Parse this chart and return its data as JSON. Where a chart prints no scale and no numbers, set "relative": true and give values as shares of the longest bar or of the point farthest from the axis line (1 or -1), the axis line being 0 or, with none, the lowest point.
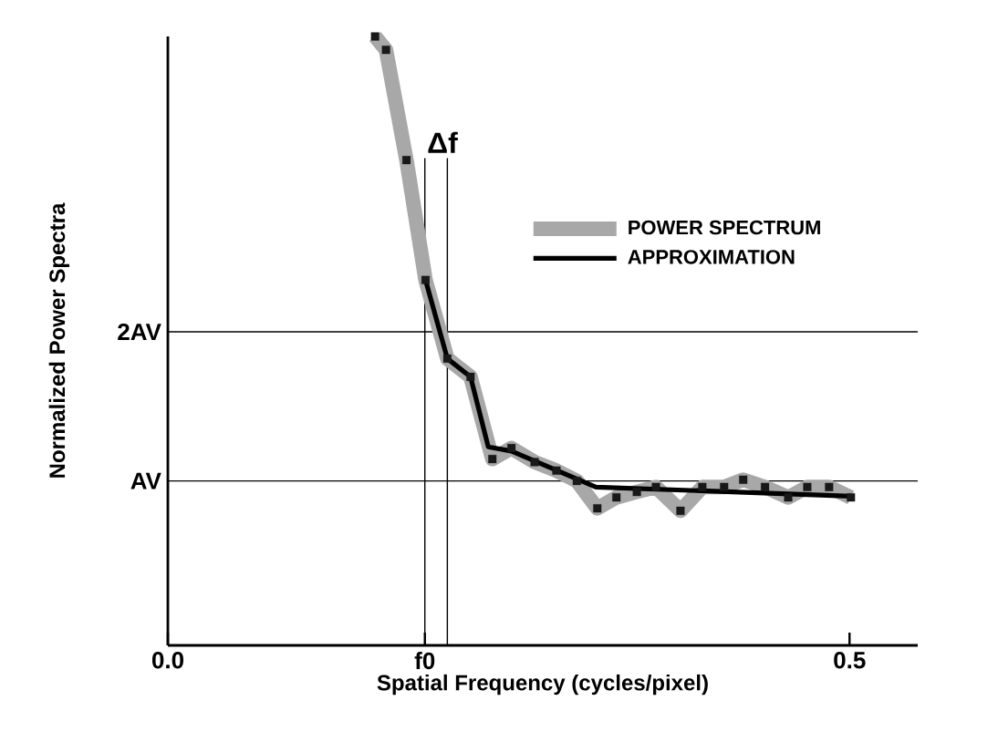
{
  "chart_data": {
    "type": "line",
    "xlabel": "Spatial Frequency (cycles/pixel)",
    "ylabel": "Normalized Power Spectra",
    "relative": true,
    "xlim": [
      0,
      0.55
    ],
    "xticks": [
      {
        "value": 0,
        "label": "0.0"
      },
      {
        "value": 0.1885,
        "label": "f0"
      },
      {
        "value": 0.5,
        "label": "0.5"
      }
    ],
    "series": [
      {
        "name": "POWER SPECTRUM",
        "color": "#a8a8a8",
        "marker": "square",
        "x": [
          0.152,
          0.16,
          0.175,
          0.189,
          0.205,
          0.222,
          0.238,
          0.252,
          0.269,
          0.285,
          0.3,
          0.315,
          0.329,
          0.344,
          0.358,
          0.376,
          0.392,
          0.408,
          0.422,
          0.438,
          0.455,
          0.469,
          0.485,
          0.501
        ],
        "values": [
          1.0,
          0.978,
          0.797,
          0.6,
          0.471,
          0.441,
          0.306,
          0.324,
          0.301,
          0.287,
          0.27,
          0.225,
          0.243,
          0.252,
          0.26,
          0.221,
          0.26,
          0.26,
          0.272,
          0.26,
          0.243,
          0.26,
          0.26,
          0.243
        ]
      },
      {
        "name": "APPROXIMATION",
        "color": "#000000",
        "marker": "none",
        "x": [
          0.189,
          0.205,
          0.222,
          0.235,
          0.252,
          0.314,
          0.501
        ],
        "values": [
          0.6,
          0.471,
          0.441,
          0.326,
          0.319,
          0.26,
          0.245
        ]
      }
    ],
    "ref_lines": [
      {
        "axis": "x",
        "value": 0.1885,
        "color": "#000000"
      },
      {
        "axis": "x",
        "value": 0.205,
        "color": "#000000"
      },
      {
        "axis": "y",
        "value": 0.27,
        "label": "AV",
        "color": "#000000"
      },
      {
        "axis": "y",
        "value": 0.515,
        "label": "2AV",
        "color": "#000000"
      }
    ],
    "annotations": [
      "Δf"
    ],
    "legend": "right",
    "grid": false
  }
}
